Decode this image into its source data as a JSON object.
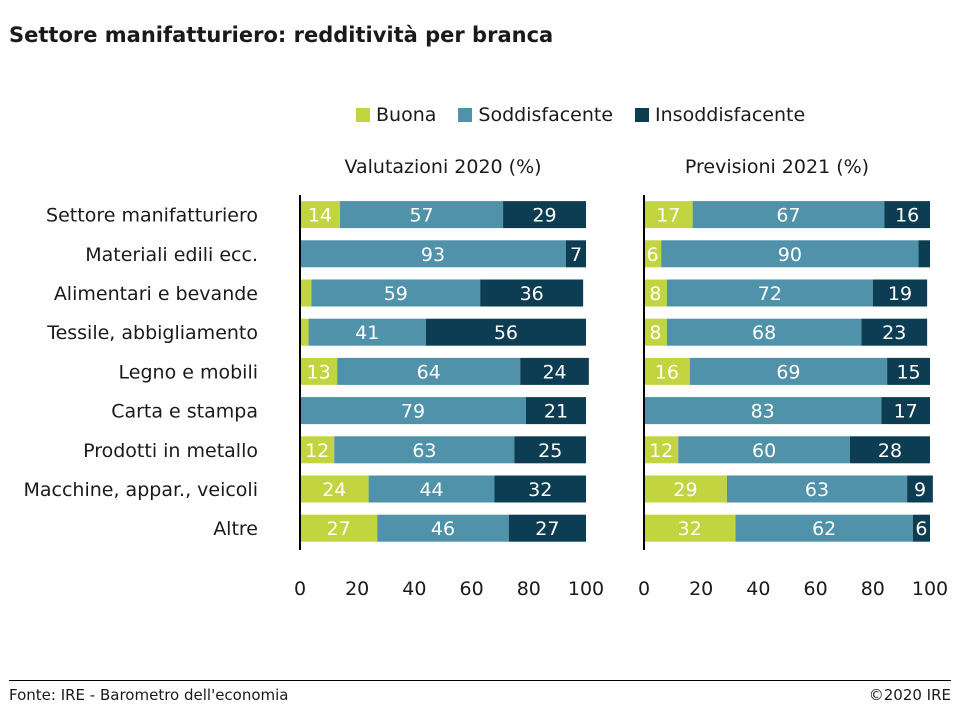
{
  "title": "Settore manifatturiero: redditività per branca",
  "source": "Fonte: IRE - Barometro dell'economia",
  "copyright": "©2020 IRE",
  "colors": {
    "Buona": "#c2d540",
    "Soddisfacente": "#4f92a9",
    "Insoddisfacente": "#0d3d52"
  },
  "legend": [
    "Buona",
    "Soddisfacente",
    "Insoddisfacente"
  ],
  "chart_data": [
    {
      "type": "bar",
      "orientation": "horizontal",
      "stacked": true,
      "title": "Valutazioni 2020 (%)",
      "categories": [
        "Settore manifatturiero",
        "Materiali edili ecc.",
        "Alimentari e bevande",
        "Tessile, abbigliamento",
        "Legno e mobili",
        "Carta e stampa",
        "Prodotti in metallo",
        "Macchine, appar., veicoli",
        "Altre"
      ],
      "series": [
        {
          "name": "Buona",
          "values": [
            14,
            0,
            4,
            3,
            13,
            0,
            12,
            24,
            27
          ],
          "labels": [
            "14",
            "",
            "",
            "",
            "13",
            "",
            "12",
            "24",
            "27"
          ]
        },
        {
          "name": "Soddisfacente",
          "values": [
            57,
            93,
            59,
            41,
            64,
            79,
            63,
            44,
            46
          ],
          "labels": [
            "57",
            "93",
            "59",
            "41",
            "64",
            "79",
            "63",
            "44",
            "46"
          ]
        },
        {
          "name": "Insoddisfacente",
          "values": [
            29,
            7,
            36,
            56,
            24,
            21,
            25,
            32,
            27
          ],
          "labels": [
            "29",
            "7",
            "36",
            "56",
            "24",
            "21",
            "25",
            "32",
            "27"
          ]
        }
      ],
      "xlim": [
        0,
        100
      ],
      "xticks": [
        "0",
        "20",
        "40",
        "60",
        "80",
        "100"
      ]
    },
    {
      "type": "bar",
      "orientation": "horizontal",
      "stacked": true,
      "title": "Previsioni 2021 (%)",
      "categories": [
        "Settore manifatturiero",
        "Materiali edili ecc.",
        "Alimentari e bevande",
        "Tessile, abbigliamento",
        "Legno e mobili",
        "Carta e stampa",
        "Prodotti in metallo",
        "Macchine, appar., veicoli",
        "Altre"
      ],
      "series": [
        {
          "name": "Buona",
          "values": [
            17,
            6,
            8,
            8,
            16,
            0,
            12,
            29,
            32
          ],
          "labels": [
            "17",
            "6",
            "8",
            "8",
            "16",
            "",
            "12",
            "29",
            "32"
          ]
        },
        {
          "name": "Soddisfacente",
          "values": [
            67,
            90,
            72,
            68,
            69,
            83,
            60,
            63,
            62
          ],
          "labels": [
            "67",
            "90",
            "72",
            "68",
            "69",
            "83",
            "60",
            "63",
            "62"
          ]
        },
        {
          "name": "Insoddisfacente",
          "values": [
            16,
            4,
            19,
            23,
            15,
            17,
            28,
            9,
            6
          ],
          "labels": [
            "16",
            "",
            "19",
            "23",
            "15",
            "17",
            "28",
            "9",
            "6"
          ]
        }
      ],
      "xlim": [
        0,
        100
      ],
      "xticks": [
        "0",
        "20",
        "40",
        "60",
        "80",
        "100"
      ]
    }
  ]
}
